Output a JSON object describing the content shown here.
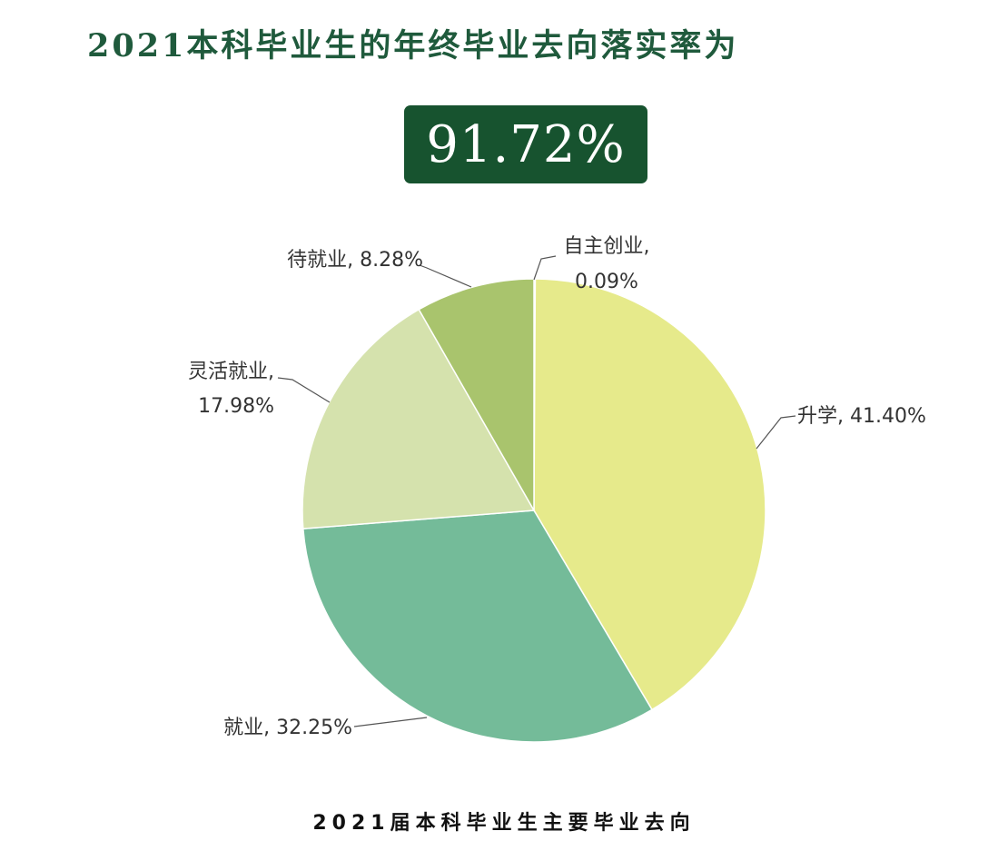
{
  "header": {
    "title": "2021本科毕业生的年终毕业去向落实率为",
    "rate": "91.72%"
  },
  "chart_data": {
    "type": "pie",
    "title": "2021届本科毕业生主要毕业去向",
    "slices": [
      {
        "name": "自主创业",
        "value": 0.09,
        "display": "0.09%",
        "color": "#dfe6a0"
      },
      {
        "name": "升学",
        "value": 41.4,
        "display": "41.40%",
        "color": "#e6ea8b"
      },
      {
        "name": "就业",
        "value": 32.25,
        "display": "32.25%",
        "color": "#74bb99"
      },
      {
        "name": "灵活就业",
        "value": 17.98,
        "display": "17.98%",
        "color": "#d5e2ad"
      },
      {
        "name": "待就业",
        "value": 8.28,
        "display": "8.28%",
        "color": "#a9c46d"
      }
    ],
    "labels": [
      {
        "lines": [
          "自主创业,",
          "0.09%"
        ]
      },
      {
        "lines": [
          "升学, 41.40%"
        ]
      },
      {
        "lines": [
          "就业, 32.25%"
        ]
      },
      {
        "lines": [
          "灵活就业,",
          "17.98%"
        ]
      },
      {
        "lines": [
          "待就业, 8.28%"
        ]
      }
    ]
  }
}
